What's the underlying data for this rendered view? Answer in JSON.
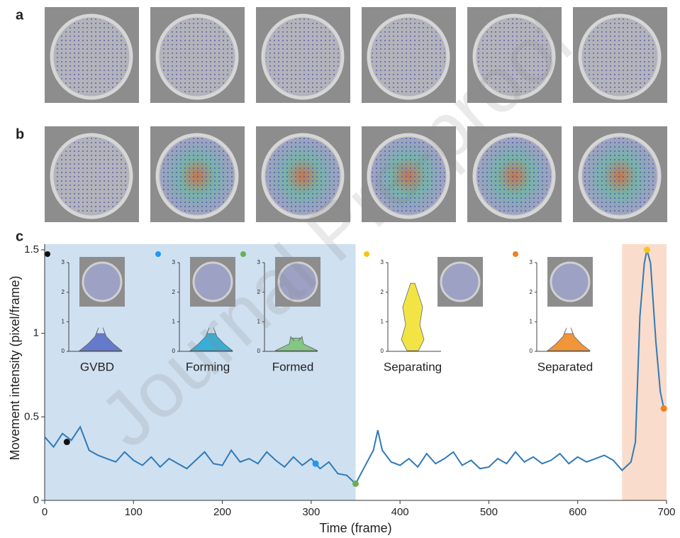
{
  "panel_labels": [
    "a",
    "b",
    "c"
  ],
  "watermark": "Journal Pre-proof",
  "chart_data": {
    "type": "line",
    "xlabel": "Time (frame)",
    "ylabel": "Movement intensity (pixel/frame)",
    "xlim": [
      0,
      700
    ],
    "ylim": [
      0,
      1.5
    ],
    "xticks": [
      0,
      100,
      200,
      300,
      400,
      500,
      600,
      700
    ],
    "yticks": [
      0,
      0.5,
      1,
      1.5
    ],
    "regions": [
      {
        "start": 0,
        "end": 350,
        "color": "#cfe0f1"
      },
      {
        "start": 650,
        "end": 700,
        "color": "#f9dccb"
      }
    ],
    "series": [
      {
        "color": "#2f7ab8",
        "x": [
          0,
          10,
          20,
          30,
          40,
          50,
          60,
          70,
          80,
          90,
          100,
          110,
          120,
          130,
          140,
          150,
          160,
          170,
          180,
          190,
          200,
          210,
          220,
          230,
          240,
          250,
          260,
          270,
          280,
          290,
          300,
          310,
          320,
          330,
          340,
          350,
          360,
          370,
          375,
          380,
          390,
          400,
          410,
          420,
          430,
          440,
          450,
          460,
          470,
          480,
          490,
          500,
          510,
          520,
          530,
          540,
          550,
          560,
          570,
          580,
          590,
          600,
          610,
          620,
          630,
          640,
          650,
          660,
          665,
          670,
          675,
          678,
          682,
          688,
          693,
          697
        ],
        "values": [
          0.38,
          0.32,
          0.4,
          0.36,
          0.44,
          0.3,
          0.27,
          0.25,
          0.23,
          0.29,
          0.24,
          0.21,
          0.26,
          0.2,
          0.25,
          0.22,
          0.19,
          0.24,
          0.29,
          0.22,
          0.21,
          0.3,
          0.23,
          0.25,
          0.22,
          0.29,
          0.24,
          0.2,
          0.26,
          0.21,
          0.25,
          0.19,
          0.23,
          0.16,
          0.15,
          0.1,
          0.2,
          0.3,
          0.42,
          0.3,
          0.23,
          0.21,
          0.25,
          0.2,
          0.28,
          0.22,
          0.25,
          0.29,
          0.21,
          0.24,
          0.19,
          0.2,
          0.25,
          0.22,
          0.29,
          0.23,
          0.26,
          0.22,
          0.24,
          0.28,
          0.22,
          0.26,
          0.23,
          0.25,
          0.27,
          0.24,
          0.18,
          0.23,
          0.35,
          1.1,
          1.42,
          1.5,
          1.42,
          0.95,
          0.65,
          0.55
        ]
      }
    ],
    "points": [
      {
        "x": 25,
        "y": 0.35,
        "color": "#111111"
      },
      {
        "x": 305,
        "y": 0.22,
        "color": "#2196f3"
      },
      {
        "x": 350,
        "y": 0.1,
        "color": "#6ab04c"
      },
      {
        "x": 678,
        "y": 1.5,
        "color": "#f5c518"
      },
      {
        "x": 697,
        "y": 0.55,
        "color": "#f08020"
      }
    ],
    "insets": [
      {
        "label": "GVBD",
        "color": "#5b6fc7",
        "ylim": [
          0,
          3
        ],
        "yticks": [
          0,
          1,
          2,
          3
        ]
      },
      {
        "label": "Forming",
        "color": "#29a9d6",
        "ylim": [
          0,
          3
        ],
        "yticks": [
          0,
          1,
          2,
          3
        ]
      },
      {
        "label": "Formed",
        "color": "#7cc47a",
        "ylim": [
          0,
          3
        ],
        "yticks": [
          0,
          1,
          2,
          3
        ]
      },
      {
        "label": "Separating",
        "color": "#f2e233",
        "ylim": [
          0,
          3
        ],
        "yticks": [
          0,
          1,
          2,
          3
        ]
      },
      {
        "label": "Separated",
        "color": "#f08a24",
        "ylim": [
          0,
          3
        ],
        "yticks": [
          0,
          1,
          2,
          3
        ]
      }
    ]
  }
}
